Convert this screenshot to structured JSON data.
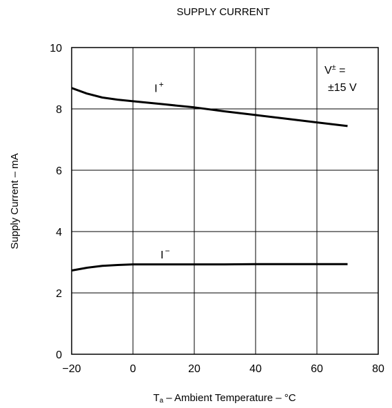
{
  "chart_data": {
    "type": "line",
    "title": "SUPPLY CURRENT",
    "xlabel_main": "T",
    "xlabel_sub": "a",
    "xlabel_rest": " – Ambient Temperature – °C",
    "ylabel": "Supply Current – mA",
    "xlim": [
      -20,
      80
    ],
    "ylim": [
      0,
      10
    ],
    "xticks": [
      -20,
      0,
      20,
      40,
      60,
      80
    ],
    "yticks": [
      0,
      2,
      4,
      6,
      8,
      10
    ],
    "xtick_labels": [
      "−20",
      "0",
      "20",
      "40",
      "60",
      "80"
    ],
    "ytick_labels": [
      "0",
      "2",
      "4",
      "6",
      "8",
      "10"
    ],
    "grid": true,
    "series": [
      {
        "name": "I+",
        "label_main": "I",
        "label_sup": "+",
        "label_at": [
          7,
          8.55
        ],
        "x": [
          -20,
          -15,
          -10,
          -5,
          0,
          10,
          20,
          30,
          40,
          50,
          60,
          70
        ],
        "y": [
          8.68,
          8.5,
          8.37,
          8.3,
          8.25,
          8.15,
          8.05,
          7.92,
          7.8,
          7.68,
          7.56,
          7.44
        ]
      },
      {
        "name": "I-",
        "label_main": "I",
        "label_sup": "−",
        "label_at": [
          9,
          3.12
        ],
        "x": [
          -20,
          -15,
          -10,
          -5,
          0,
          10,
          20,
          30,
          40,
          50,
          60,
          70
        ],
        "y": [
          2.73,
          2.82,
          2.88,
          2.91,
          2.93,
          2.93,
          2.93,
          2.93,
          2.94,
          2.94,
          2.94,
          2.94
        ]
      }
    ],
    "annotation": {
      "line1_main": "V",
      "line1_sup": "±",
      "line1_rest": " =",
      "line2": "±15 V",
      "position": "top-right"
    }
  }
}
